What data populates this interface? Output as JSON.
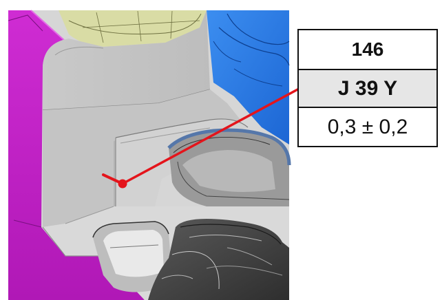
{
  "callout": {
    "id": "146",
    "code": "J 39 Y",
    "tolerance": "0,3 ± 0,2"
  },
  "colors": {
    "leader": "#e4141b",
    "magenta_part": "#c21fc7",
    "blue_part": "#2c7fe6",
    "yellow_part": "#d9dca5",
    "grey_part": "#cfcfcf",
    "dark_part": "#4a4a4a",
    "box_highlight": "#e6e6e6"
  }
}
